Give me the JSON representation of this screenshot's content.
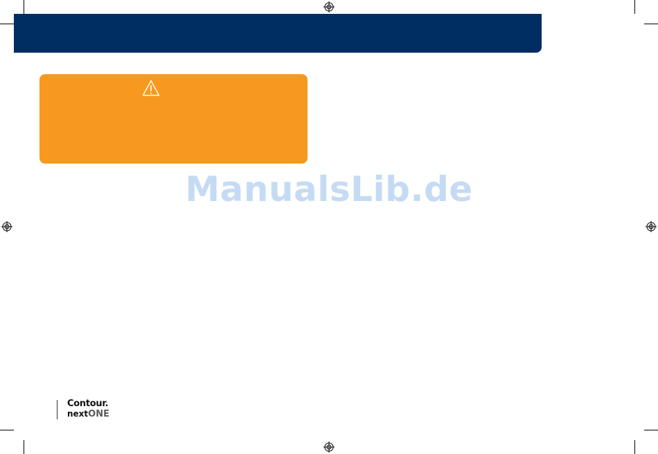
{
  "watermark": {
    "text": "ManualsLib.de"
  },
  "warning": {
    "icon": "warning-triangle-icon",
    "color": "#f7991e"
  },
  "header": {
    "color": "#002d62"
  },
  "logo": {
    "line1": "Contour.",
    "line2a": "next",
    "line2b": "ONE"
  }
}
